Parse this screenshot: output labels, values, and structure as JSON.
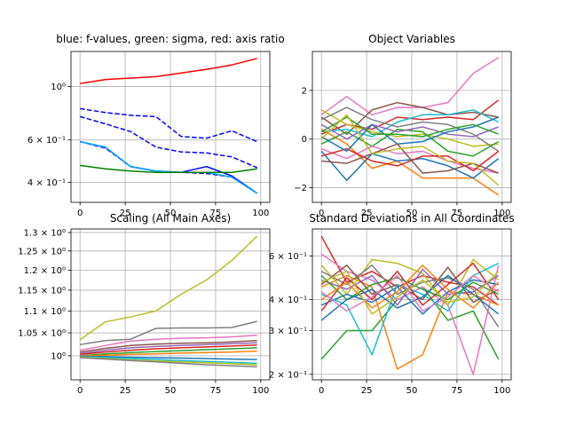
{
  "chart_data": [
    {
      "type": "line",
      "title": "blue: f-values, green: sigma, red: axis ratio",
      "xlabel": "",
      "ylabel": "",
      "yscale": "log",
      "xlim": [
        -5,
        105
      ],
      "ylim": [
        0.33,
        1.4
      ],
      "grid": true,
      "xticks": [
        0,
        25,
        50,
        75,
        100
      ],
      "xtick_labels": [
        "0",
        "25",
        "50",
        "75",
        "100"
      ],
      "yticks": [
        0.4,
        0.6,
        1.0
      ],
      "ytick_labels": [
        "4 × 10⁻¹",
        "6 × 10⁻¹",
        "10⁰"
      ],
      "series": [
        {
          "color": "#ff0000",
          "style": "solid",
          "x": [
            0,
            14,
            28,
            42,
            56,
            70,
            84,
            98
          ],
          "y": [
            1.03,
            1.07,
            1.085,
            1.1,
            1.14,
            1.18,
            1.23,
            1.31
          ]
        },
        {
          "color": "#0000ff",
          "style": "dashed",
          "x": [
            0,
            14,
            28,
            42,
            56,
            70,
            84,
            98
          ],
          "y": [
            0.81,
            0.78,
            0.76,
            0.75,
            0.62,
            0.61,
            0.655,
            0.59
          ]
        },
        {
          "color": "#0000ff",
          "style": "dashed",
          "x": [
            0,
            14,
            28,
            42,
            56,
            70,
            84,
            98
          ],
          "y": [
            0.75,
            0.7,
            0.65,
            0.56,
            0.535,
            0.53,
            0.51,
            0.46
          ]
        },
        {
          "color": "#0000ff",
          "style": "dashed",
          "x": [
            0,
            14,
            28,
            42,
            56,
            70,
            84,
            98
          ],
          "y": [
            0.59,
            0.555,
            0.465,
            0.445,
            0.44,
            0.435,
            0.42,
            0.36
          ]
        },
        {
          "color": "#0000ff",
          "style": "solid",
          "x": [
            0,
            14,
            28,
            42,
            56,
            70,
            84,
            98
          ],
          "y": [
            0.59,
            0.56,
            0.465,
            0.445,
            0.44,
            0.465,
            0.425,
            0.36
          ]
        },
        {
          "color": "#00aaff",
          "style": "solid",
          "x": [
            0,
            14,
            28,
            42,
            56,
            70,
            84,
            98
          ],
          "y": [
            0.59,
            0.56,
            0.465,
            0.445,
            0.44,
            0.44,
            0.42,
            0.36
          ]
        },
        {
          "color": "#008000",
          "style": "solid",
          "x": [
            0,
            14,
            28,
            42,
            56,
            70,
            84,
            98
          ],
          "y": [
            0.47,
            0.455,
            0.445,
            0.44,
            0.44,
            0.44,
            0.44,
            0.455
          ]
        }
      ]
    },
    {
      "type": "line",
      "title": "Object Variables",
      "xlabel": "",
      "ylabel": "",
      "xlim": [
        -5,
        105
      ],
      "ylim": [
        -2.6,
        3.6
      ],
      "grid": true,
      "xticks": [
        0,
        25,
        50,
        75,
        100
      ],
      "xtick_labels": [
        "0",
        "25",
        "50",
        "75",
        "100"
      ],
      "yticks": [
        -2,
        0,
        2
      ],
      "ytick_labels": [
        "−2",
        "0",
        "2"
      ],
      "x": [
        0,
        14,
        28,
        42,
        56,
        70,
        84,
        98
      ],
      "series": [
        {
          "color": "#e377c2",
          "y": [
            1.0,
            1.75,
            1.0,
            1.3,
            1.3,
            1.5,
            2.7,
            3.35
          ]
        },
        {
          "color": "#d62728",
          "y": [
            0.2,
            0.6,
            0.4,
            0.9,
            0.8,
            0.9,
            0.8,
            1.6
          ]
        },
        {
          "color": "#8c564b",
          "y": [
            0.9,
            0.2,
            1.2,
            1.5,
            1.3,
            1.0,
            1.1,
            0.9
          ]
        },
        {
          "color": "#17becf",
          "y": [
            0.3,
            0.4,
            0.1,
            0.7,
            1.0,
            1.0,
            1.2,
            0.7
          ]
        },
        {
          "color": "#bcbd22",
          "y": [
            1.2,
            0.6,
            0.3,
            0.1,
            0.2,
            0.0,
            -0.3,
            -0.2
          ]
        },
        {
          "color": "#ff7f0e",
          "y": [
            0.4,
            -0.2,
            -1.2,
            -0.9,
            -1.6,
            -1.6,
            -1.6,
            -2.3
          ]
        },
        {
          "color": "#1f77b4",
          "y": [
            -0.5,
            -1.7,
            -0.6,
            -0.9,
            -0.8,
            -1.1,
            -1.6,
            -0.8
          ]
        },
        {
          "color": "#2ca02c",
          "y": [
            -0.2,
            0.3,
            -0.3,
            0.4,
            0.3,
            -0.5,
            -0.7,
            -0.1
          ]
        },
        {
          "color": "#9467bd",
          "y": [
            0.6,
            0.0,
            0.6,
            0.3,
            0.5,
            0.2,
            0.1,
            0.5
          ]
        },
        {
          "color": "#7f7f7f",
          "y": [
            0.8,
            1.3,
            0.8,
            0.5,
            0.7,
            0.6,
            0.2,
            -0.5
          ]
        },
        {
          "color": "#e377c2",
          "y": [
            -0.4,
            -0.8,
            -0.3,
            -0.6,
            -0.5,
            -0.9,
            -1.2,
            -1.4
          ]
        },
        {
          "color": "#d62728",
          "y": [
            -0.7,
            -0.4,
            -0.9,
            -1.1,
            -0.7,
            -0.7,
            -1.3,
            -0.5
          ]
        },
        {
          "color": "#1f77b4",
          "y": [
            0.1,
            -0.5,
            0.6,
            -0.2,
            -0.1,
            0.3,
            0.5,
            0.9
          ]
        },
        {
          "color": "#2ca02c",
          "y": [
            0.3,
            0.9,
            0.2,
            0.2,
            0.1,
            0.4,
            0.6,
            0.2
          ]
        },
        {
          "color": "#8c564b",
          "y": [
            -0.9,
            -1.0,
            -0.6,
            -0.2,
            -1.4,
            -1.3,
            -1.0,
            -1.4
          ]
        },
        {
          "color": "#bcbd22",
          "y": [
            0.0,
            1.0,
            -0.6,
            -0.4,
            -0.3,
            -0.9,
            -1.0,
            -1.9
          ]
        }
      ]
    },
    {
      "type": "line",
      "title": "Scaling (All Main Axes)",
      "xlabel": "",
      "ylabel": "",
      "yscale": "log",
      "xlim": [
        -5,
        105
      ],
      "ylim": [
        0.95,
        1.31
      ],
      "grid": true,
      "xticks": [
        0,
        25,
        50,
        75,
        100
      ],
      "xtick_labels": [
        "0",
        "25",
        "50",
        "75",
        "100"
      ],
      "yticks": [
        1.0,
        1.05,
        1.1,
        1.15,
        1.2,
        1.25,
        1.3
      ],
      "ytick_labels": [
        "10⁰",
        "1.05 × 10⁰",
        "1.1 × 10⁰",
        "1.15 × 10⁰",
        "1.2 × 10⁰",
        "1.25 × 10⁰",
        "1.3 × 10⁰"
      ],
      "x": [
        0,
        14,
        28,
        42,
        56,
        70,
        84,
        98
      ],
      "series": [
        {
          "color": "#bcbd22",
          "y": [
            1.035,
            1.075,
            1.086,
            1.1,
            1.14,
            1.175,
            1.225,
            1.29
          ]
        },
        {
          "color": "#7f7f7f",
          "y": [
            1.024,
            1.033,
            1.036,
            1.06,
            1.061,
            1.061,
            1.062,
            1.076
          ]
        },
        {
          "color": "#e377c2",
          "y": [
            1.012,
            1.022,
            1.032,
            1.036,
            1.038,
            1.039,
            1.041,
            1.045
          ]
        },
        {
          "color": "#8c564b",
          "y": [
            1.008,
            1.016,
            1.022,
            1.025,
            1.027,
            1.028,
            1.03,
            1.033
          ]
        },
        {
          "color": "#9467bd",
          "y": [
            1.005,
            1.012,
            1.017,
            1.02,
            1.022,
            1.024,
            1.026,
            1.028
          ]
        },
        {
          "color": "#d62728",
          "y": [
            1.003,
            1.008,
            1.012,
            1.015,
            1.017,
            1.019,
            1.021,
            1.023
          ]
        },
        {
          "color": "#2ca02c",
          "y": [
            1.0,
            1.004,
            1.007,
            1.009,
            1.011,
            1.013,
            1.015,
            1.017
          ]
        },
        {
          "color": "#ff7f0e",
          "y": [
            1.0,
            1.001,
            1.003,
            1.004,
            1.006,
            1.007,
            1.008,
            1.01
          ]
        },
        {
          "color": "#1f77b4",
          "y": [
            0.999,
            0.998,
            0.997,
            0.996,
            0.995,
            0.994,
            0.993,
            0.992
          ]
        },
        {
          "color": "#17becf",
          "y": [
            0.998,
            0.996,
            0.994,
            0.992,
            0.99,
            0.988,
            0.986,
            0.984
          ]
        },
        {
          "color": "#bcbd22",
          "y": [
            0.997,
            0.994,
            0.991,
            0.989,
            0.987,
            0.985,
            0.983,
            0.981
          ]
        },
        {
          "color": "#7f7f7f",
          "y": [
            0.996,
            0.993,
            0.99,
            0.987,
            0.984,
            0.981,
            0.979,
            0.977
          ]
        }
      ]
    },
    {
      "type": "line",
      "title": "Standard Deviations in All Coordinates",
      "xlabel": "",
      "ylabel": "",
      "yscale": "log",
      "xlim": [
        -5,
        105
      ],
      "ylim": [
        0.19,
        0.77
      ],
      "grid": true,
      "xticks": [
        0,
        25,
        50,
        75,
        100
      ],
      "xtick_labels": [
        "0",
        "25",
        "50",
        "75",
        "100"
      ],
      "yticks": [
        0.2,
        0.3,
        0.4,
        0.6
      ],
      "ytick_labels": [
        "2 × 10⁻¹",
        "3 × 10⁻¹",
        "4 × 10⁻¹",
        "6 × 10⁻¹"
      ],
      "x": [
        0,
        14,
        28,
        42,
        56,
        70,
        84,
        98
      ],
      "series": [
        {
          "color": "#d62728",
          "y": [
            0.72,
            0.47,
            0.52,
            0.45,
            0.5,
            0.47,
            0.45,
            0.38
          ]
        },
        {
          "color": "#2ca02c",
          "y": [
            0.23,
            0.3,
            0.3,
            0.4,
            0.45,
            0.33,
            0.36,
            0.23
          ]
        },
        {
          "color": "#ff7f0e",
          "y": [
            0.45,
            0.5,
            0.45,
            0.21,
            0.24,
            0.43,
            0.42,
            0.38
          ]
        },
        {
          "color": "#e377c2",
          "y": [
            0.61,
            0.52,
            0.48,
            0.4,
            0.45,
            0.38,
            0.2,
            0.55
          ]
        },
        {
          "color": "#bcbd22",
          "y": [
            0.55,
            0.42,
            0.58,
            0.56,
            0.51,
            0.38,
            0.58,
            0.48
          ]
        },
        {
          "color": "#1f77b4",
          "y": [
            0.38,
            0.42,
            0.39,
            0.45,
            0.35,
            0.43,
            0.48,
            0.46
          ]
        },
        {
          "color": "#9467bd",
          "y": [
            0.48,
            0.44,
            0.5,
            0.38,
            0.53,
            0.42,
            0.43,
            0.5
          ]
        },
        {
          "color": "#8c564b",
          "y": [
            0.46,
            0.55,
            0.42,
            0.46,
            0.4,
            0.54,
            0.39,
            0.44
          ]
        },
        {
          "color": "#17becf",
          "y": [
            0.42,
            0.38,
            0.24,
            0.46,
            0.42,
            0.36,
            0.5,
            0.56
          ]
        },
        {
          "color": "#7f7f7f",
          "y": [
            0.52,
            0.46,
            0.55,
            0.42,
            0.47,
            0.49,
            0.44,
            0.31
          ]
        },
        {
          "color": "#d62728",
          "y": [
            0.36,
            0.49,
            0.4,
            0.52,
            0.38,
            0.46,
            0.56,
            0.4
          ]
        },
        {
          "color": "#2ca02c",
          "y": [
            0.5,
            0.4,
            0.46,
            0.49,
            0.44,
            0.4,
            0.47,
            0.42
          ]
        },
        {
          "color": "#ff7f0e",
          "y": [
            0.4,
            0.47,
            0.37,
            0.43,
            0.55,
            0.44,
            0.37,
            0.47
          ]
        },
        {
          "color": "#1f77b4",
          "y": [
            0.33,
            0.4,
            0.44,
            0.37,
            0.41,
            0.5,
            0.42,
            0.35
          ]
        },
        {
          "color": "#e377c2",
          "y": [
            0.43,
            0.36,
            0.41,
            0.5,
            0.36,
            0.41,
            0.5,
            0.43
          ]
        },
        {
          "color": "#bcbd22",
          "y": [
            0.47,
            0.52,
            0.35,
            0.41,
            0.48,
            0.39,
            0.41,
            0.52
          ]
        }
      ]
    }
  ]
}
